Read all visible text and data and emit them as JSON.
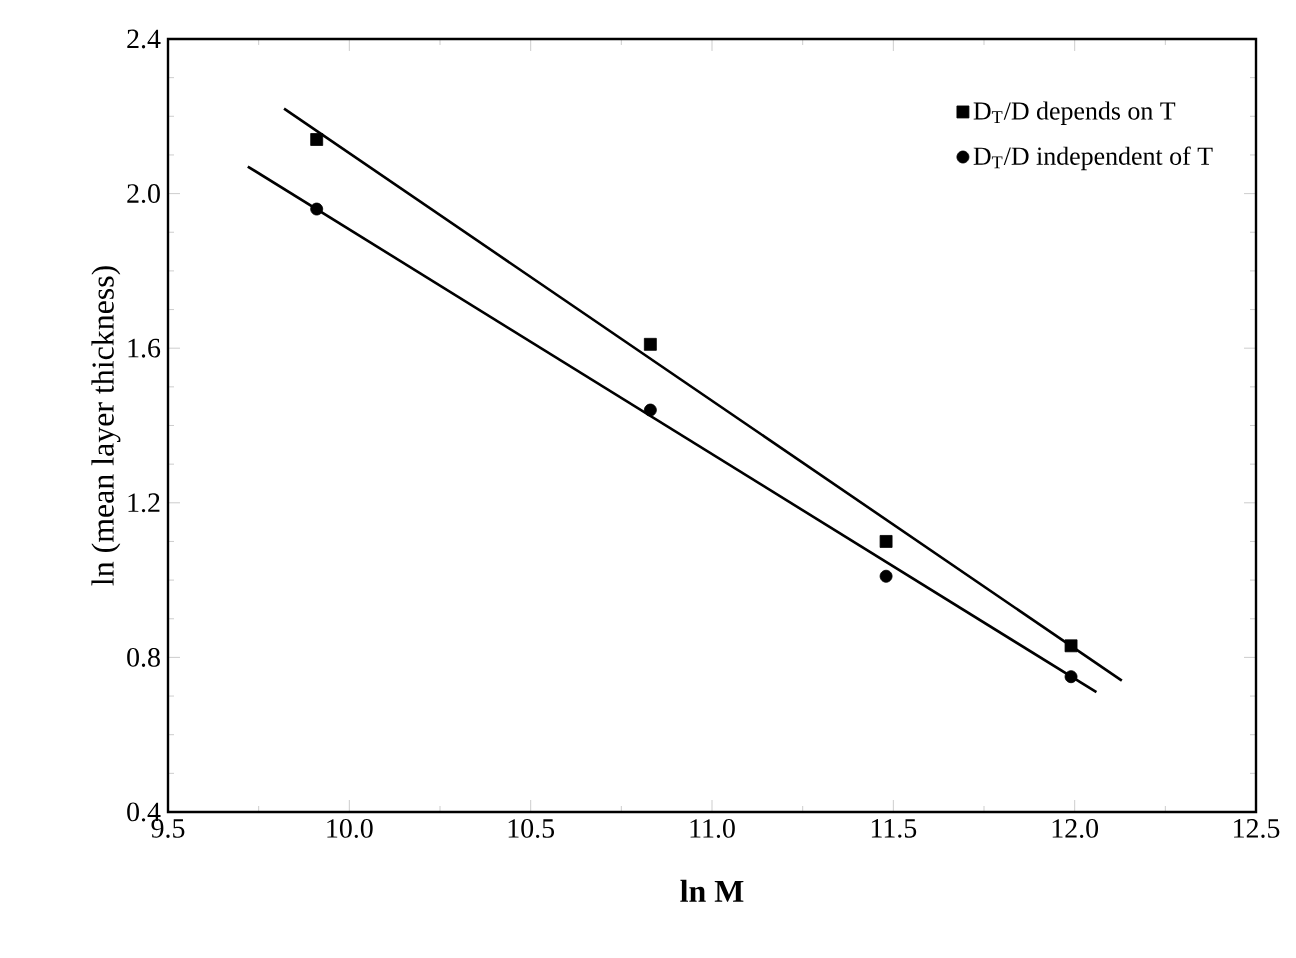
{
  "chart_data": {
    "type": "scatter",
    "xlabel": "ln M",
    "ylabel": "ln (mean layer thickness)",
    "xlim": [
      9.5,
      12.5
    ],
    "ylim": [
      0.4,
      2.4
    ],
    "xticks": [
      9.5,
      {
        "value": 10,
        "label": "10.0"
      },
      10.5,
      {
        "value": 11,
        "label": "11.0"
      },
      11.5,
      {
        "value": 12,
        "label": "12.0"
      },
      12.5
    ],
    "yticks": [
      0.4,
      0.8,
      1.2,
      1.6,
      {
        "value": 2,
        "label": "2.0"
      },
      2.4
    ],
    "legend": "top right",
    "grid": false,
    "series": [
      {
        "name": "D$_{T}$/D depends on T",
        "color": "#000000",
        "marker": "square",
        "x": [
          9.91,
          10.83,
          11.48,
          11.99
        ],
        "values": [
          2.14,
          1.61,
          1.1,
          0.83
        ]
      },
      {
        "name": "D$_{T}$/D independent of T",
        "color": "#000000",
        "marker": "circle",
        "x": [
          9.91,
          10.83,
          11.48,
          11.99
        ],
        "values": [
          1.96,
          1.44,
          1.01,
          0.75
        ]
      },
      {
        "type": "line",
        "color": "#000000",
        "marker": "none",
        "line_style": "solid",
        "x": [
          9.82,
          12.13
        ],
        "values": [
          2.22,
          0.74
        ]
      },
      {
        "type": "line",
        "color": "#000000",
        "marker": "none",
        "line_style": "solid",
        "x": [
          9.72,
          12.06
        ],
        "values": [
          2.07,
          0.71
        ]
      }
    ]
  }
}
